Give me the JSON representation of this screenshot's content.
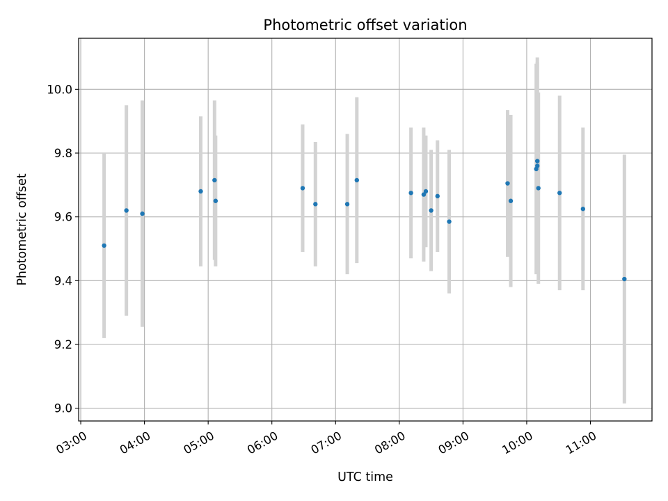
{
  "chart_data": {
    "type": "scatter",
    "title": "Photometric offset variation",
    "xlabel": "UTC time",
    "ylabel": "Photometric offset",
    "x_tick_labels": [
      "03:00",
      "04:00",
      "05:00",
      "06:00",
      "07:00",
      "08:00",
      "09:00",
      "10:00",
      "11:00"
    ],
    "y_tick_labels": [
      "9.0",
      "9.2",
      "9.4",
      "9.6",
      "9.8",
      "10.0"
    ],
    "xlim": [
      "02:58",
      "11:58"
    ],
    "ylim": [
      8.96,
      10.16
    ],
    "grid": true,
    "colors": {
      "points": "#1f77b4",
      "errorbars": "#d3d3d3",
      "grid": "#b0b0b0"
    },
    "points": [
      {
        "time": "03:22",
        "y": 9.51,
        "yerr": 0.29
      },
      {
        "time": "03:43",
        "y": 9.62,
        "yerr": 0.33
      },
      {
        "time": "03:58",
        "y": 9.61,
        "yerr": 0.355
      },
      {
        "time": "04:53",
        "y": 9.68,
        "yerr": 0.235
      },
      {
        "time": "05:06",
        "y": 9.715,
        "yerr": 0.25
      },
      {
        "time": "05:07",
        "y": 9.65,
        "yerr": 0.205
      },
      {
        "time": "06:29",
        "y": 9.69,
        "yerr": 0.2
      },
      {
        "time": "06:41",
        "y": 9.64,
        "yerr": 0.195
      },
      {
        "time": "07:11",
        "y": 9.64,
        "yerr": 0.22
      },
      {
        "time": "07:20",
        "y": 9.715,
        "yerr": 0.26
      },
      {
        "time": "08:11",
        "y": 9.675,
        "yerr": 0.205
      },
      {
        "time": "08:23",
        "y": 9.67,
        "yerr": 0.21
      },
      {
        "time": "08:25",
        "y": 9.68,
        "yerr": 0.175
      },
      {
        "time": "08:30",
        "y": 9.62,
        "yerr": 0.19
      },
      {
        "time": "08:36",
        "y": 9.665,
        "yerr": 0.175
      },
      {
        "time": "08:47",
        "y": 9.585,
        "yerr": 0.225
      },
      {
        "time": "09:42",
        "y": 9.705,
        "yerr": 0.23
      },
      {
        "time": "09:45",
        "y": 9.65,
        "yerr": 0.27
      },
      {
        "time": "10:09",
        "y": 9.75,
        "yerr": 0.33
      },
      {
        "time": "10:10",
        "y": 9.76,
        "yerr": 0.325
      },
      {
        "time": "10:10",
        "y": 9.775,
        "yerr": 0.325
      },
      {
        "time": "10:11",
        "y": 9.69,
        "yerr": 0.3
      },
      {
        "time": "10:31",
        "y": 9.675,
        "yerr": 0.305
      },
      {
        "time": "10:53",
        "y": 9.625,
        "yerr": 0.255
      },
      {
        "time": "11:32",
        "y": 9.405,
        "yerr": 0.39
      }
    ]
  }
}
